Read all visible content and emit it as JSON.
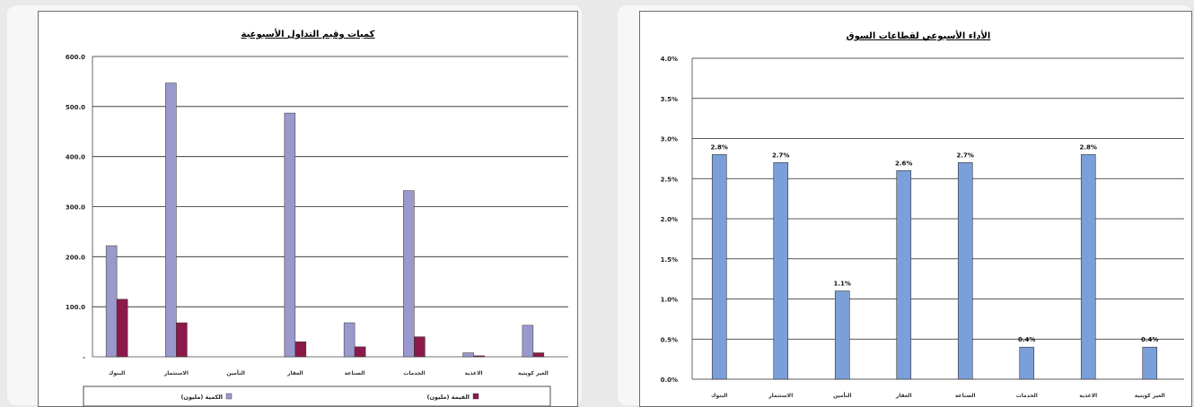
{
  "chart_data": [
    {
      "type": "bar",
      "title": "كميات وقيم التداول الأسبوعية",
      "categories": [
        "البنوك",
        "الاستثمار",
        "التأمين",
        "العقار",
        "الصناعة",
        "الخدمات",
        "الاغذية",
        "الغير كويتية"
      ],
      "series": [
        {
          "name": "الكمية (مليون)",
          "color": "#9999cc",
          "values": [
            222,
            547,
            0,
            487,
            68,
            332,
            8,
            63
          ]
        },
        {
          "name": "القيمة (مليون)",
          "color": "#8b1a4a",
          "values": [
            115,
            68,
            0,
            30,
            20,
            40,
            2,
            8
          ]
        }
      ],
      "yticks": [
        "600.0",
        "500.0",
        "400.0",
        "300.0",
        "200.0",
        "100.0",
        "-"
      ],
      "ylim": [
        0,
        600
      ],
      "grid": true,
      "legend": "bottom"
    },
    {
      "type": "bar",
      "title": "الأداء الأسبوعي لقطاعات السوق",
      "categories": [
        "البنوك",
        "الاستثمار",
        "التأمين",
        "العقار",
        "الصناعة",
        "الخدمات",
        "الاغذية",
        "الغير كويتية"
      ],
      "series": [
        {
          "color": "#7b9fd9",
          "values": [
            2.8,
            2.7,
            1.1,
            2.6,
            2.7,
            0.4,
            2.8,
            0.4
          ],
          "labels": [
            "2.8%",
            "2.7%",
            "1.1%",
            "2.6%",
            "2.7%",
            "0.4%",
            "2.8%",
            "0.4%"
          ]
        }
      ],
      "yticks": [
        "4.0%",
        "3.5%",
        "3.0%",
        "2.5%",
        "2.0%",
        "1.5%",
        "1.0%",
        "0.5%",
        "0.0%"
      ],
      "ylim": [
        0,
        4
      ],
      "grid": true,
      "legend": "none"
    }
  ]
}
